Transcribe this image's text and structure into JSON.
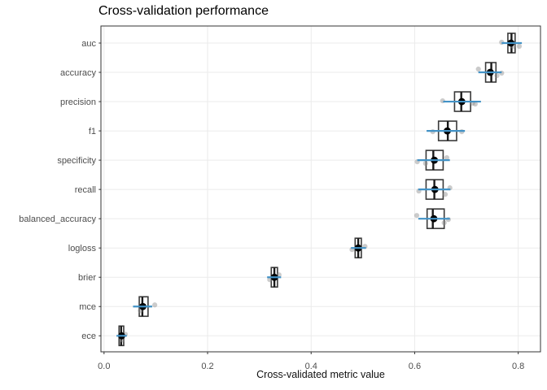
{
  "title": "Cross-validation performance",
  "axis": {
    "x_title": "Cross-validated metric value",
    "x_tick_labels": [
      "0.0",
      "0.2",
      "0.4",
      "0.6",
      "0.8"
    ],
    "x_tick_values": [
      0.0,
      0.2,
      0.4,
      0.6,
      0.8
    ]
  },
  "colors": {
    "panel_border": "#333333",
    "gridline": "#ebebeb",
    "box_stroke": "#3a3a3a",
    "median": "#1a1a1a",
    "mean_dot": "#000000",
    "interval_blue": "#4292c6",
    "jitter_gray": "#8c8c8c",
    "axis_text": "#4d4d4d",
    "tick_mark": "#333333"
  },
  "chart_data": {
    "type": "boxplot",
    "orientation": "horizontal",
    "title": "Cross-validation performance",
    "xlabel": "Cross-validated metric value",
    "ylabel": "",
    "grid": true,
    "legend": false,
    "xlim": [
      -0.006,
      0.843
    ],
    "x_ticks": [
      0.0,
      0.2,
      0.4,
      0.6,
      0.8
    ],
    "categories": [
      "auc",
      "accuracy",
      "precision",
      "f1",
      "specificity",
      "recall",
      "balanced_accuracy",
      "logloss",
      "brier",
      "mce",
      "ece"
    ],
    "metrics": [
      {
        "name": "auc",
        "q1": 0.78,
        "median": 0.787,
        "q3": 0.794,
        "mean": 0.786,
        "interval": [
          0.768,
          0.807
        ],
        "points": [
          {
            "v": 0.768,
            "dy": -1
          },
          {
            "v": 0.79,
            "dy": 4
          },
          {
            "v": 0.802,
            "dy": 4
          }
        ]
      },
      {
        "name": "accuracy",
        "q1": 0.737,
        "median": 0.748,
        "q3": 0.757,
        "mean": 0.746,
        "interval": [
          0.723,
          0.768
        ],
        "points": [
          {
            "v": 0.723,
            "dy": -4
          },
          {
            "v": 0.759,
            "dy": 4
          },
          {
            "v": 0.768,
            "dy": 1
          }
        ]
      },
      {
        "name": "precision",
        "q1": 0.677,
        "median": 0.69,
        "q3": 0.708,
        "mean": 0.691,
        "interval": [
          0.655,
          0.728
        ],
        "points": [
          {
            "v": 0.654,
            "dy": -1
          },
          {
            "v": 0.712,
            "dy": 2
          },
          {
            "v": 0.717,
            "dy": 3
          }
        ]
      },
      {
        "name": "f1",
        "q1": 0.646,
        "median": 0.664,
        "q3": 0.681,
        "mean": 0.663,
        "interval": [
          0.623,
          0.697
        ],
        "points": [
          {
            "v": 0.635,
            "dy": 1
          },
          {
            "v": 0.691,
            "dy": 1
          }
        ]
      },
      {
        "name": "specificity",
        "q1": 0.622,
        "median": 0.636,
        "q3": 0.655,
        "mean": 0.638,
        "interval": [
          0.605,
          0.668
        ],
        "points": [
          {
            "v": 0.605,
            "dy": 2
          },
          {
            "v": 0.621,
            "dy": 4
          },
          {
            "v": 0.662,
            "dy": -3
          }
        ]
      },
      {
        "name": "recall",
        "q1": 0.622,
        "median": 0.638,
        "q3": 0.655,
        "mean": 0.639,
        "interval": [
          0.607,
          0.669
        ],
        "points": [
          {
            "v": 0.608,
            "dy": 2
          },
          {
            "v": 0.659,
            "dy": 6
          },
          {
            "v": 0.668,
            "dy": -2
          }
        ]
      },
      {
        "name": "balanced_accuracy",
        "q1": 0.624,
        "median": 0.635,
        "q3": 0.657,
        "mean": 0.637,
        "interval": [
          0.607,
          0.668
        ],
        "points": [
          {
            "v": 0.604,
            "dy": -4
          },
          {
            "v": 0.657,
            "dy": 5
          },
          {
            "v": 0.665,
            "dy": 1
          }
        ]
      },
      {
        "name": "logloss",
        "q1": 0.485,
        "median": 0.491,
        "q3": 0.497,
        "mean": 0.491,
        "interval": [
          0.477,
          0.506
        ],
        "points": [
          {
            "v": 0.479,
            "dy": 2
          },
          {
            "v": 0.504,
            "dy": -2
          }
        ]
      },
      {
        "name": "brier",
        "q1": 0.323,
        "median": 0.329,
        "q3": 0.335,
        "mean": 0.329,
        "interval": [
          0.315,
          0.342
        ],
        "points": [
          {
            "v": 0.32,
            "dy": 3
          },
          {
            "v": 0.338,
            "dy": -3
          }
        ]
      },
      {
        "name": "mce",
        "q1": 0.068,
        "median": 0.074,
        "q3": 0.085,
        "mean": 0.075,
        "interval": [
          0.056,
          0.093
        ],
        "points": [
          {
            "v": 0.07,
            "dy": 5
          },
          {
            "v": 0.098,
            "dy": -2
          }
        ]
      },
      {
        "name": "ece",
        "q1": 0.029,
        "median": 0.033,
        "q3": 0.038,
        "mean": 0.034,
        "interval": [
          0.024,
          0.044
        ],
        "points": [
          {
            "v": 0.035,
            "dy": 5
          },
          {
            "v": 0.041,
            "dy": -2
          }
        ]
      }
    ]
  }
}
